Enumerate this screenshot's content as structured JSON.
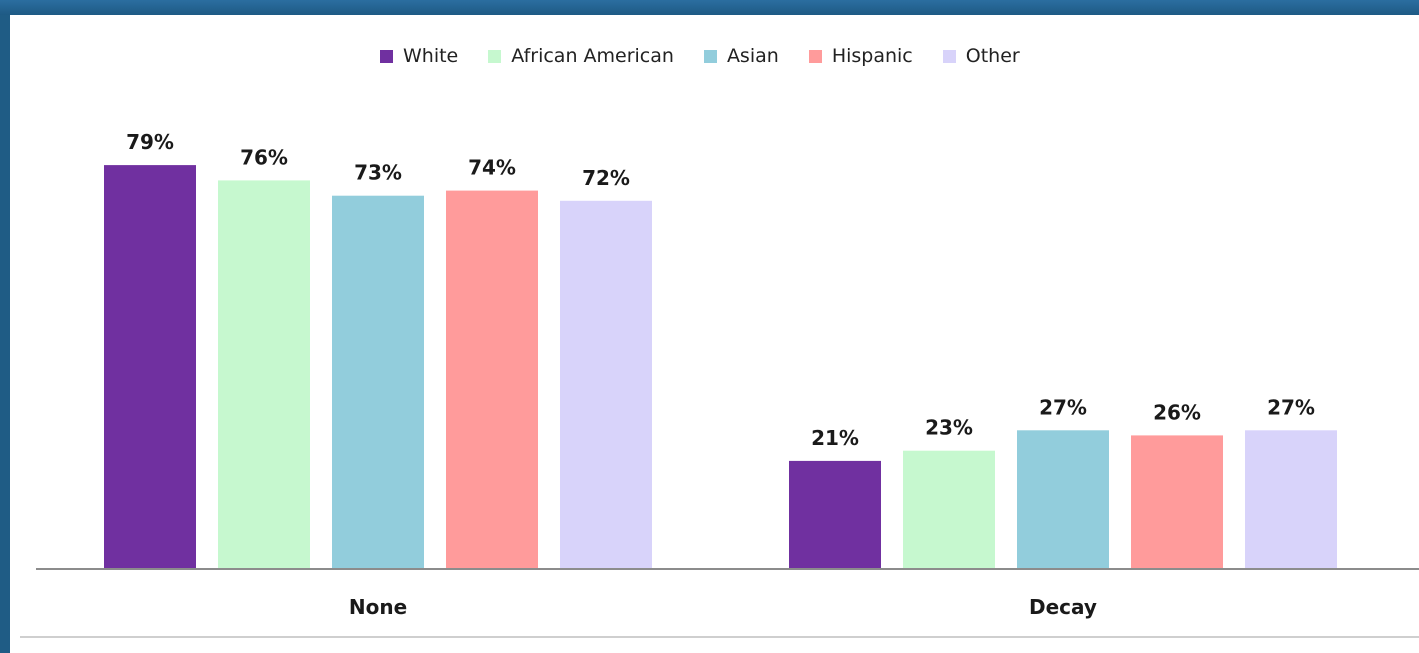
{
  "chart_data": {
    "type": "bar",
    "title": "",
    "xlabel": "",
    "ylabel": "",
    "categories": [
      "None",
      "Decay"
    ],
    "series": [
      {
        "name": "White",
        "values": [
          79,
          21
        ],
        "labels": [
          "79%",
          "21%"
        ]
      },
      {
        "name": "African American",
        "values": [
          76,
          23
        ],
        "labels": [
          "76%",
          "23%"
        ]
      },
      {
        "name": "Asian",
        "values": [
          73,
          27
        ],
        "labels": [
          "73%",
          "27%"
        ]
      },
      {
        "name": "Hispanic",
        "values": [
          74,
          26
        ],
        "labels": [
          "74%",
          "26%"
        ]
      },
      {
        "name": "Other",
        "values": [
          72,
          27
        ],
        "labels": [
          "72%",
          "27%"
        ]
      }
    ],
    "ylim": [
      0,
      100
    ],
    "grid": false,
    "legend_position": "top"
  },
  "colors": {
    "White": "#7030a0",
    "African American": "#c6f8cf",
    "Asian": "#92cddc",
    "Hispanic": "#ff9b9b",
    "Other": "#d8d3fa"
  }
}
